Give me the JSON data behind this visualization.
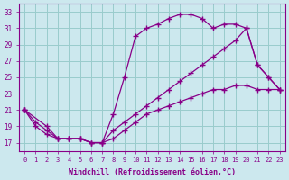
{
  "xlabel": "Windchill (Refroidissement éolien,°C)",
  "bg_color": "#cce8ee",
  "line_color": "#880088",
  "grid_color": "#99cccc",
  "ylim": [
    16,
    34
  ],
  "xlim": [
    -0.5,
    23.5
  ],
  "yticks": [
    17,
    19,
    21,
    23,
    25,
    27,
    29,
    31,
    33
  ],
  "xticks": [
    0,
    1,
    2,
    3,
    4,
    5,
    6,
    7,
    8,
    9,
    10,
    11,
    12,
    13,
    14,
    15,
    16,
    17,
    18,
    19,
    20,
    21,
    22,
    23
  ],
  "line1_x": [
    0,
    1,
    2,
    3,
    4,
    5,
    6,
    7,
    8,
    9,
    10,
    11,
    12,
    13,
    14,
    15,
    16,
    17,
    18,
    19,
    20,
    21,
    22,
    23
  ],
  "line1_y": [
    21.0,
    19.0,
    18.0,
    17.5,
    17.5,
    17.5,
    17.0,
    17.0,
    20.5,
    25.0,
    30.0,
    31.0,
    31.5,
    32.2,
    32.7,
    32.7,
    32.2,
    31.0,
    31.5,
    31.5,
    31.0,
    26.5,
    25.0,
    23.5
  ],
  "line2_x": [
    0,
    2,
    3,
    4,
    5,
    6,
    7,
    8,
    9,
    10,
    11,
    12,
    13,
    14,
    15,
    16,
    17,
    18,
    19,
    20,
    21,
    22,
    23
  ],
  "line2_y": [
    21.0,
    19.0,
    17.5,
    17.5,
    17.5,
    17.0,
    17.0,
    18.5,
    19.5,
    20.5,
    21.5,
    22.5,
    23.5,
    24.5,
    25.5,
    26.5,
    27.5,
    28.5,
    29.5,
    31.0,
    26.5,
    25.0,
    23.5
  ],
  "line3_x": [
    0,
    1,
    2,
    3,
    4,
    5,
    6,
    7,
    8,
    9,
    10,
    11,
    12,
    13,
    14,
    15,
    16,
    17,
    18,
    19,
    20,
    21,
    22,
    23
  ],
  "line3_y": [
    21.0,
    19.5,
    18.5,
    17.5,
    17.5,
    17.5,
    17.0,
    17.0,
    17.5,
    18.5,
    19.5,
    20.5,
    21.0,
    21.5,
    22.0,
    22.5,
    23.0,
    23.5,
    23.5,
    24.0,
    24.0,
    23.5,
    23.5,
    23.5
  ]
}
